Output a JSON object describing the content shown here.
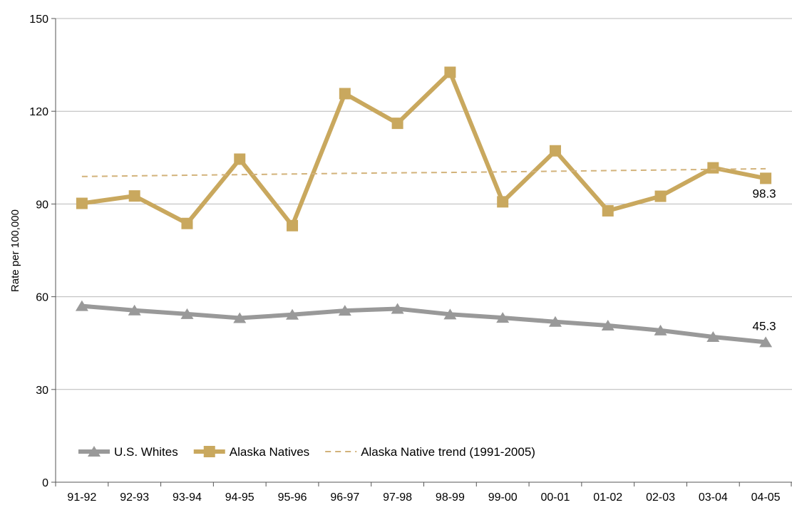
{
  "chart_data": {
    "type": "line",
    "title": "",
    "xlabel": "",
    "ylabel": "Rate per 100,000",
    "ylim": [
      0,
      150
    ],
    "yticks": [
      0,
      30,
      60,
      90,
      120,
      150
    ],
    "grid": "horizontal",
    "legend_position": "bottom-left",
    "categories": [
      "91-92",
      "92-93",
      "93-94",
      "94-95",
      "95-96",
      "96-97",
      "97-98",
      "98-99",
      "99-00",
      "00-01",
      "01-02",
      "02-03",
      "03-04",
      "04-05"
    ],
    "series": [
      {
        "name": "U.S. Whites",
        "marker": "triangle",
        "style": "solid",
        "color": "#999999",
        "values": [
          57.0,
          55.6,
          54.4,
          53.1,
          54.2,
          55.5,
          56.1,
          54.3,
          53.2,
          51.9,
          50.7,
          49.1,
          47.0,
          45.3
        ],
        "end_label": "45.3"
      },
      {
        "name": "Alaska Natives",
        "marker": "square",
        "style": "solid",
        "color": "#c9a85e",
        "values": [
          90.2,
          92.6,
          83.7,
          104.5,
          83.0,
          125.7,
          116.1,
          132.6,
          90.7,
          107.2,
          87.8,
          92.5,
          101.7,
          98.3
        ],
        "end_label": "98.3"
      },
      {
        "name": "Alaska Native trend (1991-2005)",
        "marker": "none",
        "style": "dashed",
        "color": "#d2b27a",
        "values": [
          98.9,
          99.1,
          99.3,
          99.5,
          99.7,
          99.9,
          100.1,
          100.2,
          100.4,
          100.6,
          100.8,
          101.0,
          101.2,
          101.4
        ]
      }
    ]
  }
}
